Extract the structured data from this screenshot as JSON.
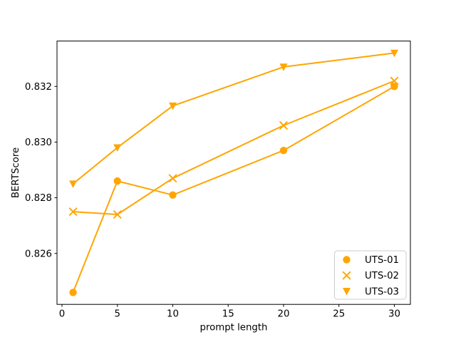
{
  "figure": {
    "background": "#ffffff"
  },
  "chart_data": {
    "type": "line",
    "title": "",
    "xlabel": "prompt length",
    "ylabel": "BERTScore",
    "x": [
      1,
      5,
      10,
      20,
      30
    ],
    "series": [
      {
        "name": "UTS-01",
        "marker": "circle",
        "values": [
          0.8246,
          0.8286,
          0.8281,
          0.8297,
          0.832
        ]
      },
      {
        "name": "UTS-02",
        "marker": "x",
        "values": [
          0.8275,
          0.8274,
          0.8287,
          0.8306,
          0.8322
        ]
      },
      {
        "name": "UTS-03",
        "marker": "triangle-down",
        "values": [
          0.8285,
          0.8298,
          0.8313,
          0.8327,
          0.8332
        ]
      }
    ],
    "line_color": "#FFA500",
    "xlim": [
      -0.45,
      31.45
    ],
    "ylim": [
      0.82417,
      0.83363
    ],
    "xticks": [
      0,
      5,
      10,
      15,
      20,
      25,
      30
    ],
    "xtick_labels": [
      "0",
      "5",
      "10",
      "15",
      "20",
      "25",
      "30"
    ],
    "yticks": [
      0.826,
      0.828,
      0.83,
      0.832
    ],
    "ytick_labels": [
      "0.826",
      "0.828",
      "0.830",
      "0.832"
    ],
    "grid": false,
    "legend": {
      "position": "lower right",
      "entries": [
        {
          "label": "UTS-01",
          "marker": "circle"
        },
        {
          "label": "UTS-02",
          "marker": "x"
        },
        {
          "label": "UTS-03",
          "marker": "triangle-down"
        }
      ],
      "border_color": "#cccccc",
      "background": "#ffffff"
    },
    "spine_color": "#000000",
    "text_color": "#000000"
  }
}
